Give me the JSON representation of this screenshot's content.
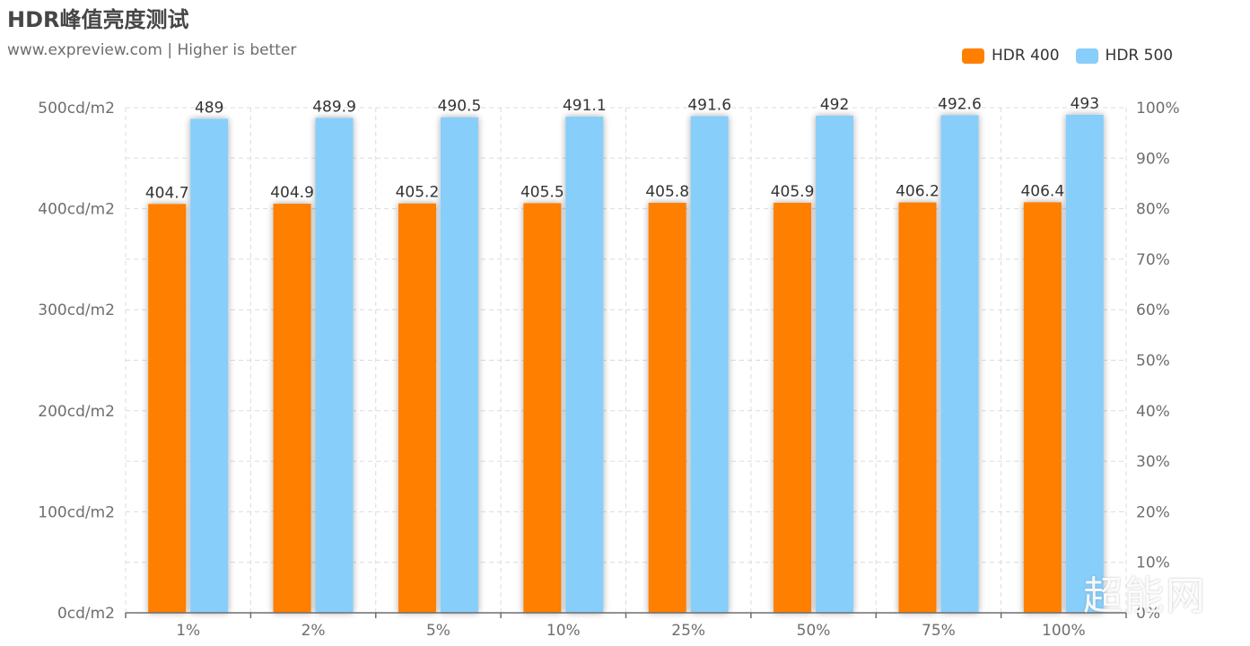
{
  "chart_data": {
    "type": "bar",
    "title": "HDR峰值亮度测试",
    "subtitle": "www.expreview.com | Higher is better",
    "categories": [
      "1%",
      "2%",
      "5%",
      "10%",
      "25%",
      "50%",
      "75%",
      "100%"
    ],
    "series": [
      {
        "name": "HDR 400",
        "color": "#ff7f00",
        "values": [
          404.7,
          404.9,
          405.2,
          405.5,
          405.8,
          405.9,
          406.2,
          406.4
        ]
      },
      {
        "name": "HDR 500",
        "color": "#87cefa",
        "values": [
          489,
          489.9,
          490.5,
          491.1,
          491.6,
          492,
          492.6,
          493
        ]
      }
    ],
    "y_left": {
      "ticks": [
        "0cd/m2",
        "100cd/m2",
        "200cd/m2",
        "300cd/m2",
        "400cd/m2",
        "500cd/m2"
      ],
      "min": 0,
      "max": 500
    },
    "y_right": {
      "ticks": [
        "0%",
        "10%",
        "20%",
        "30%",
        "40%",
        "50%",
        "60%",
        "70%",
        "80%",
        "90%",
        "100%"
      ]
    },
    "grid": true,
    "legend_position": "top-right"
  },
  "watermark": "超能网"
}
